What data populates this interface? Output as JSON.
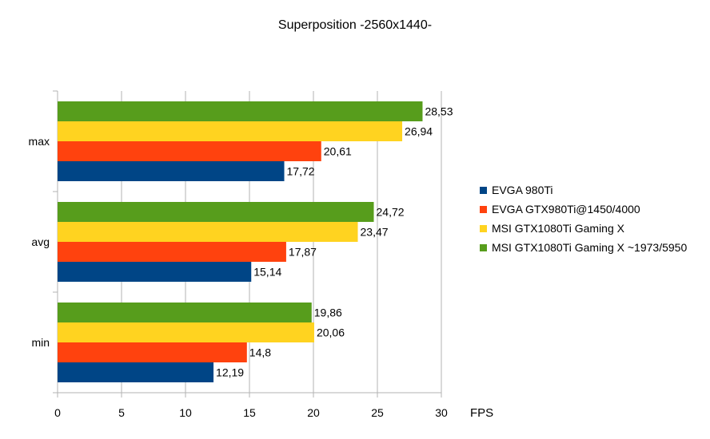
{
  "chart_data": {
    "type": "bar",
    "orientation": "horizontal",
    "title": "Superposition -2560x1440-",
    "xlabel": "FPS",
    "ylabel": "",
    "xlim": [
      0,
      30
    ],
    "xticks": [
      "0",
      "5",
      "10",
      "15",
      "20",
      "25",
      "30"
    ],
    "categories": [
      "max",
      "avg",
      "min"
    ],
    "series": [
      {
        "name": "EVGA 980Ti",
        "color": "#004586",
        "values": [
          17.72,
          15.14,
          12.19
        ],
        "labels": [
          "17,72",
          "15,14",
          "12,19"
        ]
      },
      {
        "name": "EVGA GTX980Ti@1450/4000",
        "color": "#ff420e",
        "values": [
          20.61,
          17.87,
          14.8
        ],
        "labels": [
          "20,61",
          "17,87",
          "14,8"
        ]
      },
      {
        "name": "MSI GTX1080Ti Gaming X",
        "color": "#ffd320",
        "values": [
          26.94,
          23.47,
          20.06
        ],
        "labels": [
          "26,94",
          "23,47",
          "20,06"
        ]
      },
      {
        "name": "MSI GTX1080Ti Gaming X ~1973/5950",
        "color": "#579d1c",
        "values": [
          28.53,
          24.72,
          19.86
        ],
        "labels": [
          "28,53",
          "24,72",
          "19,86"
        ]
      }
    ],
    "grid": true,
    "legend_position": "right"
  }
}
